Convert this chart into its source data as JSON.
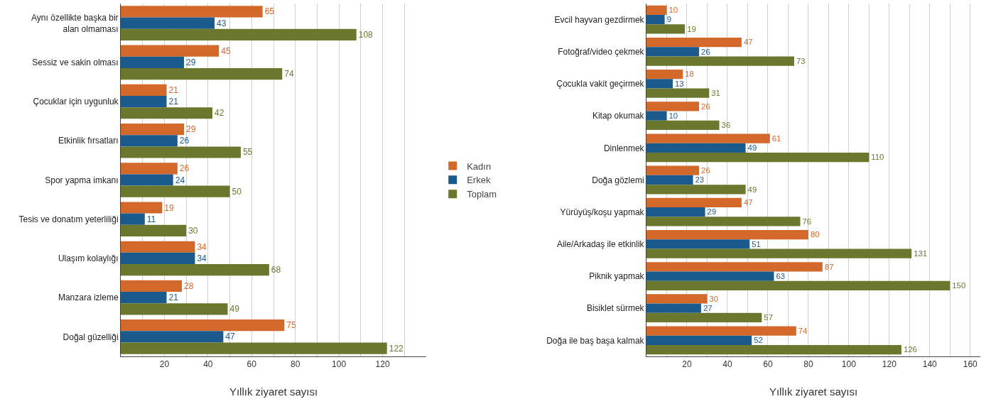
{
  "chart_data": [
    {
      "type": "bar",
      "orientation": "horizontal",
      "categories": [
        "Aynı özellikte başka bir alan olmaması",
        "Sessiz ve sakin olması",
        "Çocuklar için uygunluk",
        "Etkinlik fırsatları",
        "Spor yapma imkanı",
        "Tesis ve donatım yeterliliği",
        "Ulaşım kolaylığı",
        "Manzara izleme",
        "Doğal güzelliği"
      ],
      "series": [
        {
          "name": "Kadın",
          "color": "#d2692a",
          "values": [
            65,
            45,
            21,
            29,
            26,
            19,
            34,
            28,
            75
          ]
        },
        {
          "name": "Erkek",
          "color": "#1b5a8c",
          "values": [
            43,
            29,
            21,
            26,
            24,
            11,
            34,
            21,
            47
          ]
        },
        {
          "name": "Toplam",
          "color": "#6b772c",
          "values": [
            108,
            74,
            42,
            55,
            50,
            30,
            68,
            49,
            122
          ]
        }
      ],
      "xlabel": "Yıllık ziyaret sayısı",
      "xlim": [
        0,
        140
      ],
      "xticks": [
        {
          "value": 10,
          "label": null
        },
        20,
        {
          "value": 30,
          "label": null
        },
        40,
        {
          "value": 50,
          "label": null
        },
        60,
        {
          "value": 70,
          "label": null
        },
        80,
        {
          "value": 90,
          "label": null
        },
        100,
        {
          "value": 110,
          "label": null
        },
        120,
        {
          "value": 130,
          "label": null
        }
      ],
      "grid": "x",
      "data_labels": true,
      "legend": "right"
    },
    {
      "type": "bar",
      "orientation": "horizontal",
      "categories": [
        "Evcil hayvan gezdirmek",
        "Fotoğraf/video çekmek",
        "Çocukla vakit geçirmek",
        "Kitap okumak",
        "Dinlenmek",
        "Doğa gözlemi",
        "Yürüyüş/koşu yapmak",
        "Aile/Arkadaş ile etkinlik",
        "Piknik yapmak",
        "Bisiklet sürmek",
        "Doğa ile baş başa kalmak"
      ],
      "series": [
        {
          "color": "#d2692a",
          "values": [
            10,
            47,
            18,
            26,
            61,
            26,
            47,
            80,
            87,
            30,
            74
          ]
        },
        {
          "color": "#1b5a8c",
          "values": [
            9,
            26,
            13,
            10,
            49,
            23,
            29,
            51,
            63,
            27,
            52
          ]
        },
        {
          "color": "#6b772c",
          "values": [
            19,
            73,
            31,
            36,
            110,
            49,
            76,
            131,
            150,
            57,
            126
          ]
        }
      ],
      "xlabel": "Yıllık ziyaret sayısı",
      "xlim": [
        0,
        165
      ],
      "xticks": [
        {
          "value": 10,
          "label": null
        },
        20,
        {
          "value": 30,
          "label": null
        },
        40,
        {
          "value": 50,
          "label": null
        },
        60,
        {
          "value": 70,
          "label": null
        },
        80,
        {
          "value": 90,
          "label": null
        },
        100,
        {
          "value": 110,
          "label": null
        },
        120,
        {
          "value": 130,
          "label": null
        },
        140,
        {
          "value": 150,
          "label": null
        },
        160
      ],
      "grid": "x",
      "data_labels": true
    }
  ]
}
